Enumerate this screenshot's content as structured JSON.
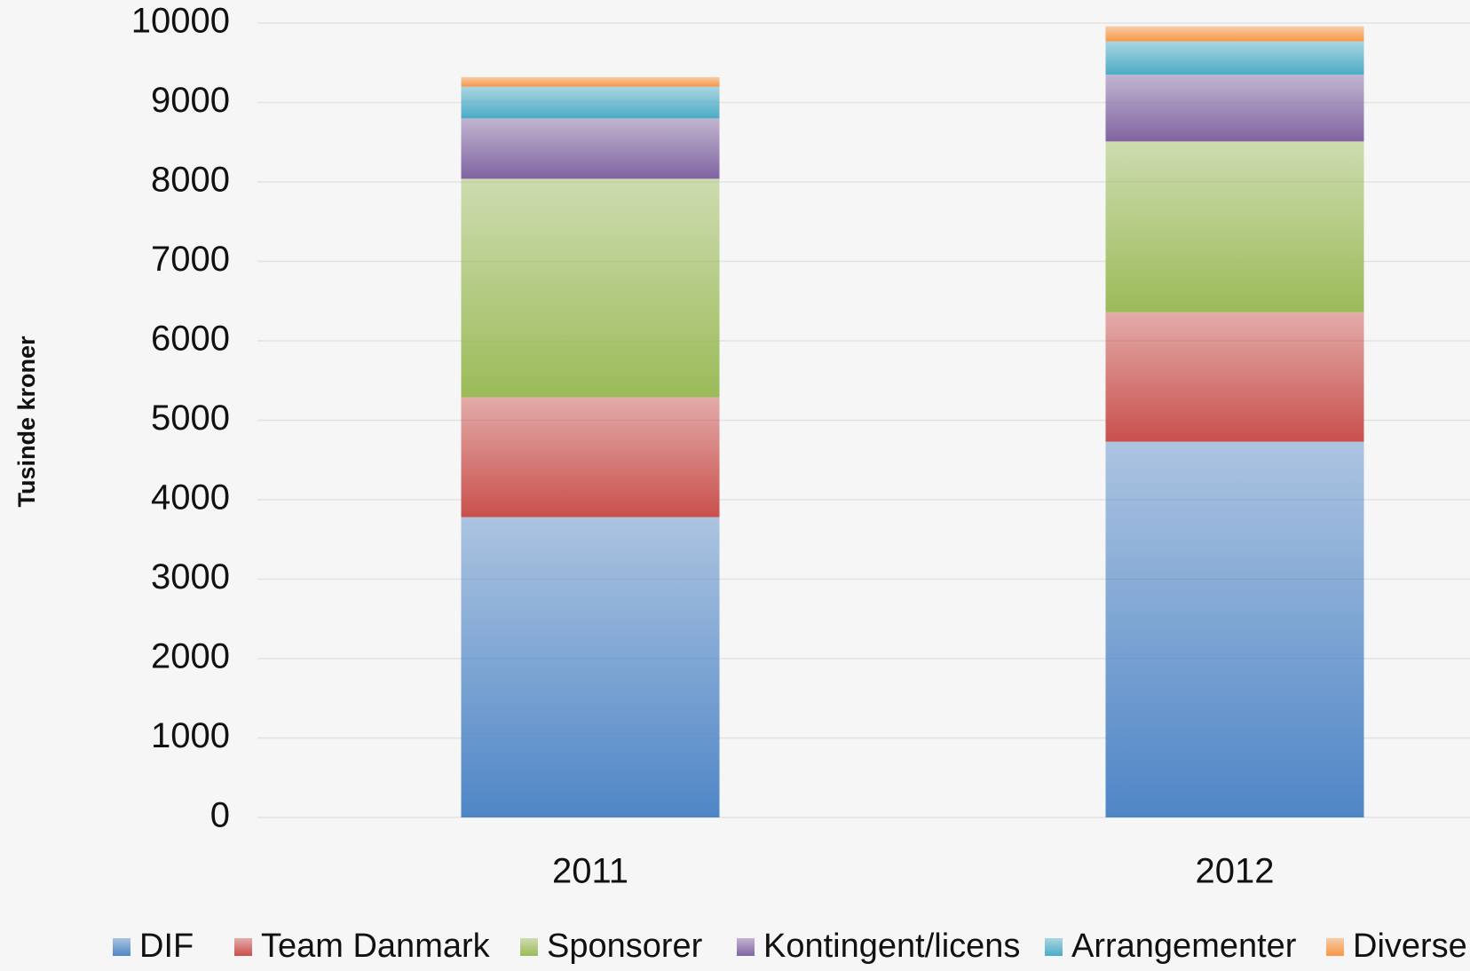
{
  "chart_data": {
    "type": "stacked_bar",
    "y_label": "Tusinde kroner",
    "categories": [
      "2011",
      "2012"
    ],
    "series": [
      {
        "name": "DIF",
        "color": "#4f86c6",
        "values": [
          3780,
          4730
        ]
      },
      {
        "name": "Team Danmark",
        "color": "#c9504c",
        "values": [
          1510,
          1630
        ]
      },
      {
        "name": "Sponsorer",
        "color": "#9bbb59",
        "values": [
          2750,
          2150
        ]
      },
      {
        "name": "Kontingent/licens",
        "color": "#8064a2",
        "values": [
          760,
          840
        ]
      },
      {
        "name": "Arrangementer",
        "color": "#4bacc6",
        "values": [
          400,
          420
        ]
      },
      {
        "name": "Diverse",
        "color": "#f79646",
        "values": [
          120,
          190
        ]
      }
    ],
    "ylim": [
      0,
      10000
    ],
    "yticks": [
      0,
      1000,
      2000,
      3000,
      4000,
      5000,
      6000,
      7000,
      8000,
      9000,
      10000
    ],
    "grid": true
  }
}
